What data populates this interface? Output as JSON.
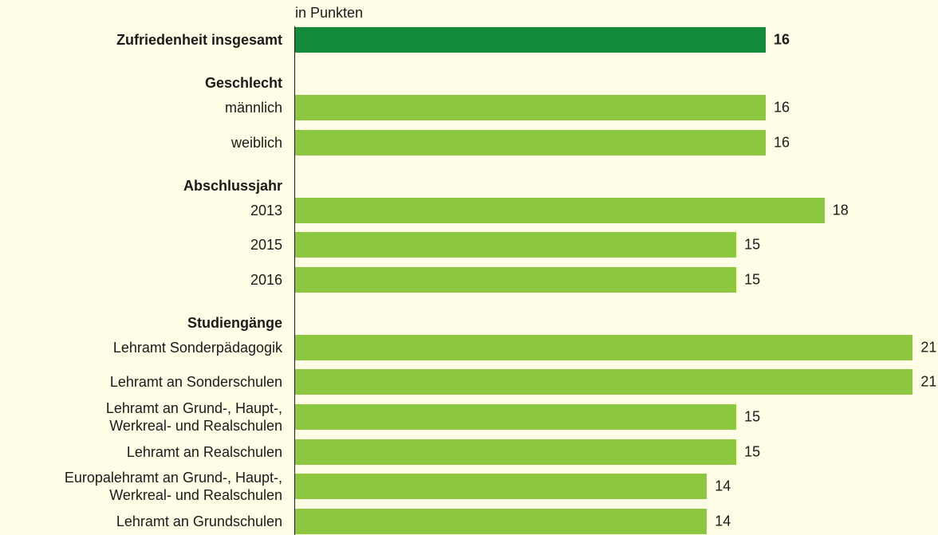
{
  "chart_data": {
    "type": "bar",
    "orientation": "horizontal",
    "axis_label": "in Punkten",
    "categories": [
      "Zufriedenheit insgesamt",
      "Geschlecht",
      "männlich",
      "weiblich",
      "Abschlussjahr",
      "2013",
      "2015",
      "2016",
      "Studiengänge",
      "Lehramt Sonderpädagogik",
      "Lehramt an Sonderschulen",
      "Lehramt an Grund-, Haupt-,\nWerkreal- und Realschulen",
      "Lehramt an Realschulen",
      "Europalehramt an Grund-, Haupt-,\nWerkreal- und Realschulen",
      "Lehramt an Grundschulen"
    ],
    "values": [
      16,
      null,
      16,
      16,
      null,
      18,
      15,
      15,
      null,
      21,
      21,
      15,
      15,
      14,
      14
    ],
    "color": "#8dc63f",
    "highlight": 0,
    "highlight_color": "#148a3b",
    "xlim": [
      0,
      21.3
    ]
  }
}
